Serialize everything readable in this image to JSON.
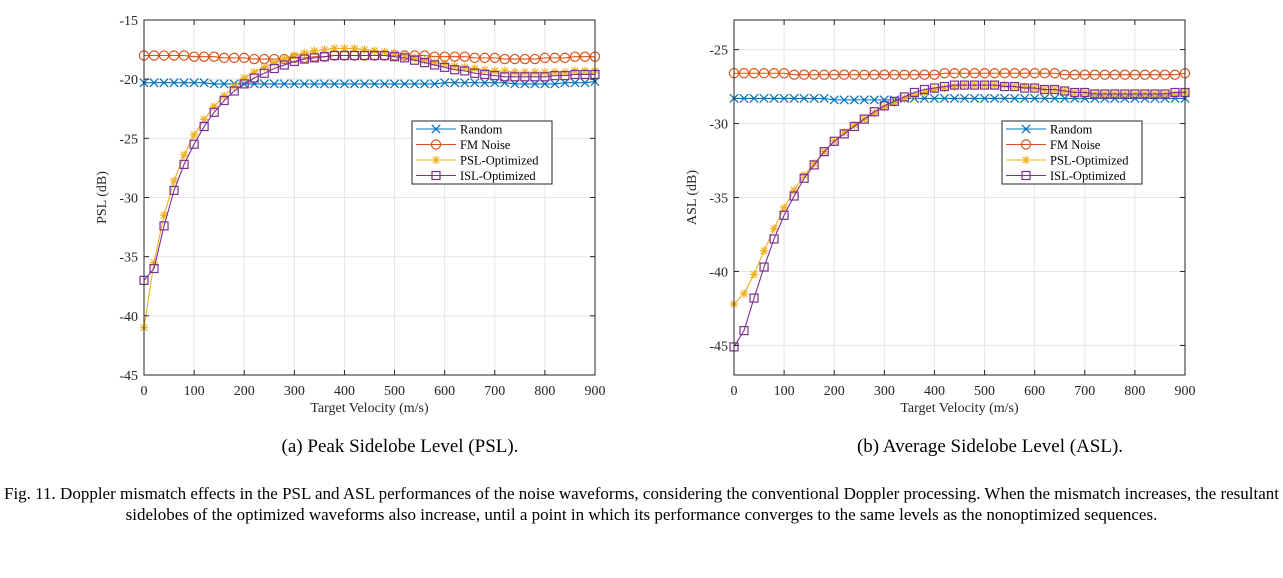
{
  "chart_data": [
    {
      "type": "line",
      "panel": "(a)",
      "caption": "(a) Peak Sidelobe Level (PSL).",
      "xlabel": "Target Velocity (m/s)",
      "ylabel": "PSL (dB)",
      "xlim": [
        0,
        900
      ],
      "ylim": [
        -45,
        -15
      ],
      "xticks": [
        0,
        100,
        200,
        300,
        400,
        500,
        600,
        700,
        800,
        900
      ],
      "yticks": [
        -45,
        -40,
        -35,
        -30,
        -25,
        -20,
        -15
      ],
      "grid": true,
      "legend_position": "right-center",
      "x": [
        0,
        20,
        40,
        60,
        80,
        100,
        120,
        140,
        160,
        180,
        200,
        220,
        240,
        260,
        280,
        300,
        320,
        340,
        360,
        380,
        400,
        420,
        440,
        460,
        480,
        500,
        520,
        540,
        560,
        580,
        600,
        620,
        640,
        660,
        680,
        700,
        720,
        740,
        760,
        780,
        800,
        820,
        840,
        860,
        880,
        900
      ],
      "series": [
        {
          "name": "Random",
          "color": "#0072BD",
          "marker": "x",
          "values": [
            -20.3,
            -20.3,
            -20.3,
            -20.3,
            -20.3,
            -20.3,
            -20.3,
            -20.4,
            -20.4,
            -20.4,
            -20.4,
            -20.4,
            -20.4,
            -20.4,
            -20.4,
            -20.4,
            -20.4,
            -20.4,
            -20.4,
            -20.4,
            -20.4,
            -20.4,
            -20.4,
            -20.4,
            -20.4,
            -20.4,
            -20.4,
            -20.4,
            -20.4,
            -20.4,
            -20.3,
            -20.3,
            -20.3,
            -20.3,
            -20.3,
            -20.3,
            -20.3,
            -20.4,
            -20.4,
            -20.4,
            -20.4,
            -20.4,
            -20.3,
            -20.3,
            -20.3,
            -20.2
          ]
        },
        {
          "name": "FM Noise",
          "color": "#D95319",
          "marker": "o",
          "values": [
            -18.0,
            -18.0,
            -18.0,
            -18.0,
            -18.0,
            -18.1,
            -18.1,
            -18.1,
            -18.2,
            -18.2,
            -18.2,
            -18.3,
            -18.3,
            -18.3,
            -18.3,
            -18.2,
            -18.2,
            -18.1,
            -18.1,
            -18.0,
            -18.0,
            -18.0,
            -18.0,
            -18.0,
            -18.0,
            -18.0,
            -18.0,
            -18.0,
            -18.0,
            -18.1,
            -18.1,
            -18.1,
            -18.1,
            -18.2,
            -18.2,
            -18.2,
            -18.3,
            -18.3,
            -18.3,
            -18.3,
            -18.2,
            -18.2,
            -18.2,
            -18.1,
            -18.1,
            -18.1
          ]
        },
        {
          "name": "PSL-Optimized",
          "color": "#EDB120",
          "marker": "*",
          "values": [
            -41.0,
            -35.5,
            -31.5,
            -28.6,
            -26.4,
            -24.7,
            -23.4,
            -22.3,
            -21.4,
            -20.6,
            -19.9,
            -19.4,
            -19.0,
            -18.6,
            -18.3,
            -18.0,
            -17.8,
            -17.6,
            -17.5,
            -17.4,
            -17.4,
            -17.4,
            -17.5,
            -17.6,
            -17.7,
            -17.8,
            -18.0,
            -18.2,
            -18.4,
            -18.6,
            -18.7,
            -18.9,
            -19.0,
            -19.1,
            -19.2,
            -19.3,
            -19.3,
            -19.4,
            -19.4,
            -19.4,
            -19.4,
            -19.4,
            -19.4,
            -19.3,
            -19.3,
            -19.3
          ]
        },
        {
          "name": "ISL-Optimized",
          "color": "#7E2F8E",
          "marker": "s",
          "values": [
            -37.0,
            -36.0,
            -32.4,
            -29.4,
            -27.2,
            -25.5,
            -24.0,
            -22.8,
            -21.8,
            -21.0,
            -20.4,
            -19.9,
            -19.5,
            -19.1,
            -18.8,
            -18.5,
            -18.3,
            -18.2,
            -18.1,
            -18.0,
            -18.0,
            -18.0,
            -18.0,
            -18.0,
            -18.0,
            -18.1,
            -18.2,
            -18.4,
            -18.6,
            -18.8,
            -19.0,
            -19.2,
            -19.3,
            -19.5,
            -19.6,
            -19.7,
            -19.8,
            -19.8,
            -19.8,
            -19.8,
            -19.8,
            -19.7,
            -19.7,
            -19.6,
            -19.6,
            -19.6
          ]
        }
      ]
    },
    {
      "type": "line",
      "panel": "(b)",
      "caption": "(b) Average Sidelobe Level (ASL).",
      "xlabel": "Target Velocity (m/s)",
      "ylabel": "ASL (dB)",
      "xlim": [
        0,
        900
      ],
      "ylim": [
        -47,
        -23
      ],
      "xticks": [
        0,
        100,
        200,
        300,
        400,
        500,
        600,
        700,
        800,
        900
      ],
      "yticks": [
        -45,
        -40,
        -35,
        -30,
        -25
      ],
      "grid": true,
      "legend_position": "right-center",
      "x": [
        0,
        20,
        40,
        60,
        80,
        100,
        120,
        140,
        160,
        180,
        200,
        220,
        240,
        260,
        280,
        300,
        320,
        340,
        360,
        380,
        400,
        420,
        440,
        460,
        480,
        500,
        520,
        540,
        560,
        580,
        600,
        620,
        640,
        660,
        680,
        700,
        720,
        740,
        760,
        780,
        800,
        820,
        840,
        860,
        880,
        900
      ],
      "series": [
        {
          "name": "Random",
          "color": "#0072BD",
          "marker": "x",
          "values": [
            -28.3,
            -28.3,
            -28.3,
            -28.3,
            -28.3,
            -28.3,
            -28.3,
            -28.3,
            -28.3,
            -28.3,
            -28.4,
            -28.4,
            -28.4,
            -28.4,
            -28.4,
            -28.4,
            -28.4,
            -28.3,
            -28.3,
            -28.3,
            -28.3,
            -28.3,
            -28.3,
            -28.3,
            -28.3,
            -28.3,
            -28.3,
            -28.3,
            -28.3,
            -28.3,
            -28.3,
            -28.3,
            -28.3,
            -28.3,
            -28.3,
            -28.3,
            -28.3,
            -28.3,
            -28.3,
            -28.3,
            -28.3,
            -28.3,
            -28.3,
            -28.3,
            -28.3,
            -28.3
          ]
        },
        {
          "name": "FM Noise",
          "color": "#D95319",
          "marker": "o",
          "values": [
            -26.6,
            -26.6,
            -26.6,
            -26.6,
            -26.6,
            -26.6,
            -26.7,
            -26.7,
            -26.7,
            -26.7,
            -26.7,
            -26.7,
            -26.7,
            -26.7,
            -26.7,
            -26.7,
            -26.7,
            -26.7,
            -26.7,
            -26.7,
            -26.7,
            -26.6,
            -26.6,
            -26.6,
            -26.6,
            -26.6,
            -26.6,
            -26.6,
            -26.6,
            -26.6,
            -26.6,
            -26.6,
            -26.6,
            -26.7,
            -26.7,
            -26.7,
            -26.7,
            -26.7,
            -26.7,
            -26.7,
            -26.7,
            -26.7,
            -26.7,
            -26.7,
            -26.7,
            -26.6
          ]
        },
        {
          "name": "PSL-Optimized",
          "color": "#EDB120",
          "marker": "*",
          "values": [
            -42.2,
            -41.5,
            -40.2,
            -38.6,
            -37.1,
            -35.7,
            -34.5,
            -33.5,
            -32.7,
            -31.9,
            -31.2,
            -30.6,
            -30.1,
            -29.7,
            -29.3,
            -28.9,
            -28.6,
            -28.3,
            -28.1,
            -27.9,
            -27.7,
            -27.6,
            -27.5,
            -27.4,
            -27.4,
            -27.4,
            -27.4,
            -27.4,
            -27.5,
            -27.5,
            -27.6,
            -27.7,
            -27.7,
            -27.8,
            -27.9,
            -27.9,
            -28.0,
            -28.0,
            -28.0,
            -28.0,
            -28.0,
            -28.0,
            -28.0,
            -28.0,
            -28.0,
            -27.9
          ]
        },
        {
          "name": "ISL-Optimized",
          "color": "#7E2F8E",
          "marker": "s",
          "values": [
            -45.1,
            -44.0,
            -41.8,
            -39.7,
            -37.8,
            -36.2,
            -34.9,
            -33.7,
            -32.8,
            -31.9,
            -31.2,
            -30.7,
            -30.2,
            -29.7,
            -29.2,
            -28.8,
            -28.5,
            -28.2,
            -27.9,
            -27.7,
            -27.6,
            -27.5,
            -27.4,
            -27.4,
            -27.4,
            -27.4,
            -27.4,
            -27.5,
            -27.5,
            -27.6,
            -27.6,
            -27.7,
            -27.7,
            -27.8,
            -27.9,
            -27.9,
            -28.0,
            -28.0,
            -28.0,
            -28.0,
            -28.0,
            -28.0,
            -28.0,
            -28.0,
            -27.9,
            -27.9
          ]
        }
      ]
    }
  ],
  "captions": {
    "sub_a": "(a) Peak Sidelobe Level (PSL).",
    "sub_b": "(b) Average Sidelobe Level (ASL).",
    "figure": "Fig. 11.    Doppler mismatch effects in the PSL and ASL performances of the noise waveforms, considering the conventional Doppler processing. When the mismatch increases, the resultant sidelobes of the optimized waveforms also increase, until a point in which its performance converges to the same levels as the nonoptimized sequences."
  }
}
